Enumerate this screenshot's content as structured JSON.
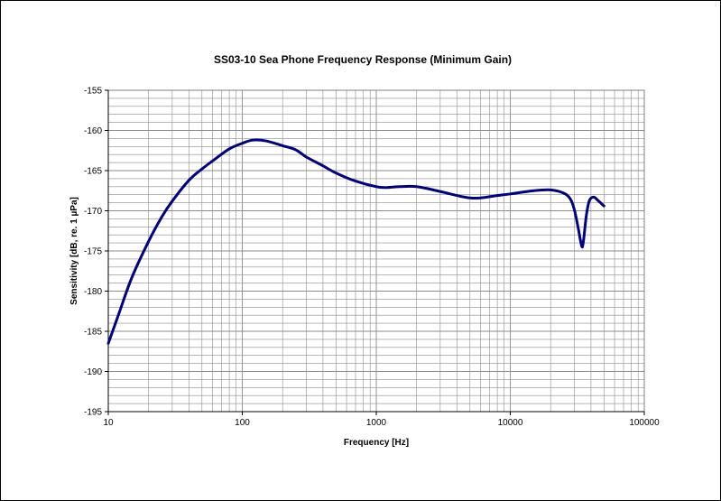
{
  "chart_data": {
    "type": "line",
    "title": "SS03-10 Sea Phone Frequency Response (Minimum Gain)",
    "xlabel": "Frequency [Hz]",
    "ylabel": "Sensitivity [dB, re. 1 µPa]",
    "xscale": "log",
    "xlim": [
      10,
      100000
    ],
    "ylim": [
      -195,
      -155
    ],
    "x_ticks": [
      "10",
      "100",
      "1000",
      "10000",
      "100000"
    ],
    "y_ticks": [
      "-155",
      "-160",
      "-165",
      "-170",
      "-175",
      "-180",
      "-185",
      "-190",
      "-195"
    ],
    "grid": true,
    "legend": "none",
    "line_color": "#000080",
    "series": [
      {
        "points": [
          [
            10,
            -186.5
          ],
          [
            12,
            -182.8
          ],
          [
            15,
            -178.3
          ],
          [
            20,
            -173.8
          ],
          [
            25,
            -170.8
          ],
          [
            30,
            -168.8
          ],
          [
            40,
            -166.2
          ],
          [
            50,
            -164.8
          ],
          [
            60,
            -163.8
          ],
          [
            80,
            -162.3
          ],
          [
            100,
            -161.6
          ],
          [
            120,
            -161.2
          ],
          [
            150,
            -161.3
          ],
          [
            200,
            -161.9
          ],
          [
            250,
            -162.4
          ],
          [
            300,
            -163.3
          ],
          [
            400,
            -164.4
          ],
          [
            500,
            -165.3
          ],
          [
            700,
            -166.3
          ],
          [
            1000,
            -167.0
          ],
          [
            1200,
            -167.1
          ],
          [
            1500,
            -167.0
          ],
          [
            2000,
            -167.0
          ],
          [
            3000,
            -167.6
          ],
          [
            4000,
            -168.1
          ],
          [
            5000,
            -168.4
          ],
          [
            6000,
            -168.4
          ],
          [
            8000,
            -168.1
          ],
          [
            10000,
            -167.9
          ],
          [
            15000,
            -167.5
          ],
          [
            20000,
            -167.4
          ],
          [
            25000,
            -167.8
          ],
          [
            28000,
            -168.5
          ],
          [
            30000,
            -169.8
          ],
          [
            32000,
            -172.0
          ],
          [
            34000,
            -174.3
          ],
          [
            35000,
            -174.0
          ],
          [
            37000,
            -170.5
          ],
          [
            39000,
            -168.7
          ],
          [
            42000,
            -168.3
          ],
          [
            45000,
            -168.7
          ],
          [
            50000,
            -169.4
          ]
        ]
      }
    ]
  }
}
